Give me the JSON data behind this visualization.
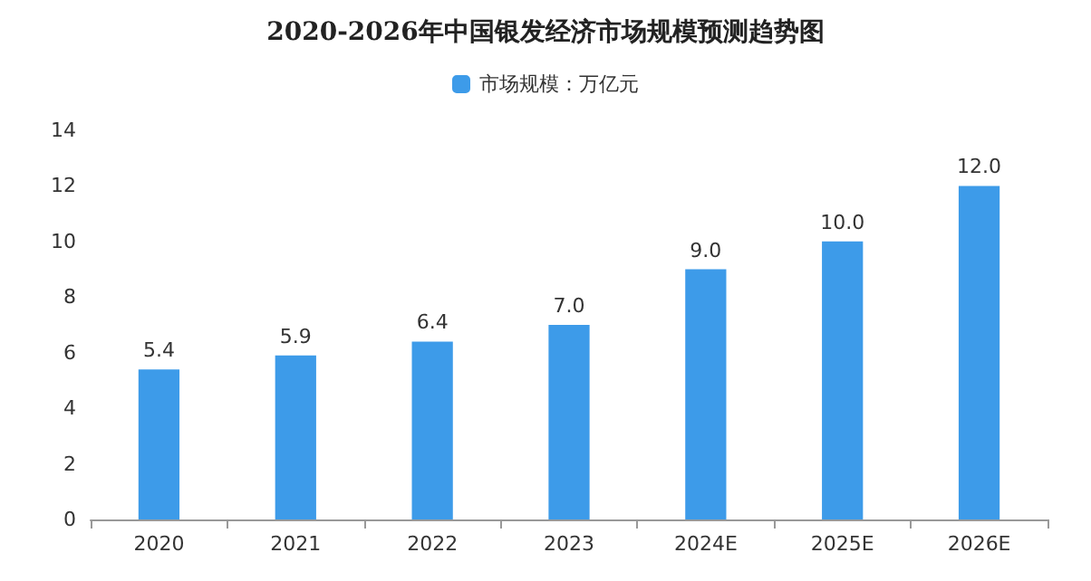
{
  "chart_data": {
    "type": "bar",
    "title": "2020-2026年中国银发经济市场规模预测趋势图",
    "categories": [
      "2020",
      "2021",
      "2022",
      "2023",
      "2024E",
      "2025E",
      "2026E"
    ],
    "series": [
      {
        "name": "市场规模：万亿元",
        "color": "#3d9be9",
        "values": [
          5.4,
          5.9,
          6.4,
          7.0,
          9.0,
          10.0,
          12.0
        ]
      }
    ],
    "value_labels": [
      "5.4",
      "5.9",
      "6.4",
      "7.0",
      "9.0",
      "10.0",
      "12.0"
    ],
    "ylim": [
      0,
      14
    ],
    "yticks": [
      0,
      2,
      4,
      6,
      8,
      10,
      12,
      14
    ],
    "grid": false,
    "legend": "top"
  }
}
